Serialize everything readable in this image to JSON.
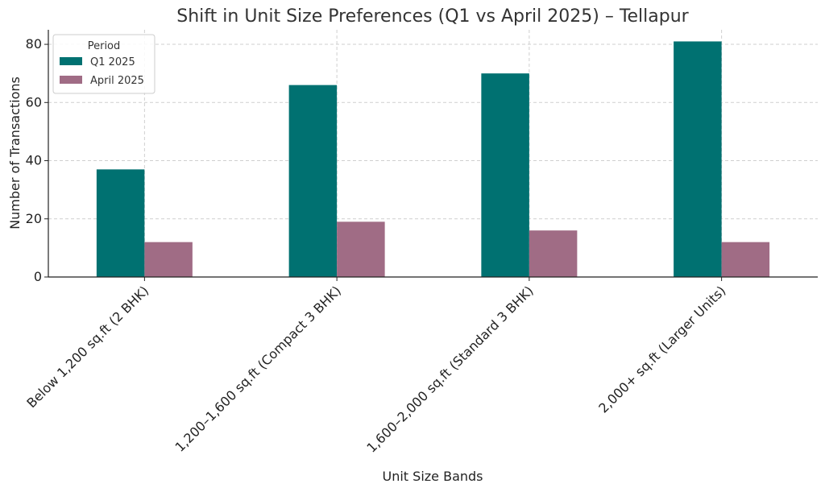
{
  "chart_data": {
    "type": "bar",
    "title": "Shift in Unit Size Preferences (Q1 vs April 2025) – Tellapur",
    "xlabel": "Unit Size Bands",
    "ylabel": "Number of Transactions",
    "categories": [
      "Below 1,200 sq.ft (2 BHK)",
      "1,200–1,600 sq.ft (Compact 3 BHK)",
      "1,600–2,000 sq.ft (Standard 3 BHK)",
      "2,000+ sq.ft (Larger Units)"
    ],
    "series": [
      {
        "name": "Q1 2025",
        "values": [
          37,
          66,
          70,
          81
        ],
        "color": "#007171"
      },
      {
        "name": "April 2025",
        "values": [
          12,
          19,
          16,
          12
        ],
        "color": "#a06c85"
      }
    ],
    "ylim": [
      0,
      85
    ],
    "yticks": [
      0,
      20,
      40,
      60,
      80
    ],
    "grid": true,
    "legend": {
      "title": "Period",
      "placement": "top-left"
    }
  }
}
